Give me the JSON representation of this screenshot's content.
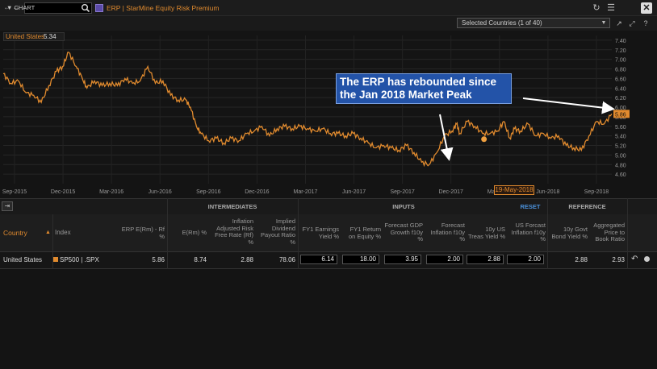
{
  "titlebar": {
    "nav_arrows": "←→",
    "app_title": "ERP | StarMine Equity Risk Premium",
    "icons": [
      "refresh-icon",
      "menu-icon",
      "close-icon"
    ]
  },
  "chart_header": {
    "toggle_label": "▼  CHART",
    "country_select_value": "Selected Countries (1 of 40)",
    "icons": [
      "export-icon",
      "expand-icon",
      "help-icon"
    ]
  },
  "chart": {
    "series_name": "United States",
    "series_value": "5.34",
    "last_value_label": "5.86",
    "hover_date": "19-May-2018",
    "callout_line1": "The ERP has rebounded since",
    "callout_line2": "the Jan 2018 Market Peak"
  },
  "chart_data": {
    "type": "line",
    "title": "",
    "xlabel": "",
    "ylabel": "",
    "ylim": [
      4.4,
      7.5
    ],
    "y_ticks": [
      "4.60",
      "4.80",
      "5.00",
      "5.20",
      "5.40",
      "5.60",
      "5.80",
      "6.00",
      "6.20",
      "6.40",
      "6.60",
      "6.80",
      "7.00",
      "7.20",
      "7.40"
    ],
    "x_ticks": [
      "Sep-2015",
      "Dec-2015",
      "Mar-2016",
      "Jun-2016",
      "Sep-2016",
      "Dec-2016",
      "Mar-2017",
      "Jun-2017",
      "Sep-2017",
      "Dec-2017",
      "Mar-2018",
      "Jun-2018",
      "Sep-2018"
    ],
    "series": [
      {
        "name": "United States",
        "x": [
          0,
          0.5,
          1,
          1.5,
          2,
          2.5,
          3,
          3.5,
          3.9,
          4.3,
          4.8,
          5.2,
          5.5,
          6,
          6.5,
          7,
          7.5,
          8,
          8.5,
          9,
          9.5,
          10,
          10.5,
          11,
          11.5,
          12,
          12.3,
          12.7,
          13,
          13.5,
          14,
          14.5,
          15,
          15.5,
          16,
          16.5,
          17,
          17.5,
          18,
          18.5,
          19,
          19.5,
          20,
          20.5,
          21,
          21.5,
          22,
          22.5,
          23,
          23.5,
          24,
          24.5,
          25,
          25.5,
          26,
          26.5,
          27,
          27.5,
          28,
          28.5,
          29,
          29.5,
          29.8,
          30,
          30.5,
          31,
          31.5,
          32,
          32.5,
          32.9,
          33.3,
          33.6,
          34,
          34.5,
          35,
          35.5,
          36,
          36.5,
          37,
          37.5,
          38,
          38.5,
          39,
          39.5,
          40
        ],
        "values": [
          6.7,
          6.5,
          6.55,
          6.3,
          6.25,
          6.1,
          6.45,
          6.75,
          6.85,
          7.15,
          6.85,
          6.6,
          6.4,
          6.55,
          6.45,
          6.5,
          6.45,
          6.6,
          6.5,
          6.55,
          6.85,
          6.5,
          6.55,
          6.25,
          6.15,
          6.15,
          6.0,
          5.6,
          5.45,
          5.3,
          5.35,
          5.25,
          5.35,
          5.3,
          5.45,
          5.5,
          5.6,
          5.4,
          5.55,
          5.6,
          5.55,
          5.6,
          5.55,
          5.5,
          5.55,
          5.45,
          5.45,
          5.4,
          5.45,
          5.35,
          5.25,
          5.15,
          5.2,
          5.15,
          5.1,
          5.2,
          5.05,
          4.85,
          4.8,
          5.05,
          5.4,
          5.5,
          5.65,
          5.45,
          5.7,
          5.6,
          5.45,
          5.45,
          5.5,
          5.7,
          5.35,
          5.55,
          5.5,
          5.65,
          5.4,
          5.45,
          5.35,
          5.4,
          5.2,
          5.15,
          5.1,
          5.4,
          5.7,
          5.65,
          5.86
        ]
      }
    ],
    "grid": true,
    "legend": "none"
  },
  "table": {
    "sections": {
      "intermediates": "INTERMEDIATES",
      "inputs": "INPUTS",
      "reset": "RESET",
      "reference": "REFERENCE"
    },
    "headers": {
      "country": "Country",
      "index": "Index",
      "erp": [
        "ERP E(Rm) - Rf",
        "%"
      ],
      "erm": [
        "E(Rm) %"
      ],
      "infl_adj": [
        "Inflation",
        "Adjusted Risk",
        "Free Rate (Rf)",
        "%"
      ],
      "implied_div": [
        "Implied",
        "Dividend",
        "Payout Ratio",
        "%"
      ],
      "fy1_eps": [
        "FY1 Earnings",
        "Yield %"
      ],
      "fy1_roe": [
        "FY1 Return",
        "on Equity %"
      ],
      "gdp": [
        "Forecast GDP",
        "Growth f10y",
        "%"
      ],
      "infl": [
        "Forecast",
        "Inflation f10y",
        "%"
      ],
      "treas": [
        "10y US",
        "Treas Yield %"
      ],
      "us_infl": [
        "US Forcast",
        "Inflation f10y",
        "%"
      ],
      "govt": [
        "10y Govt",
        "Bond Yield %"
      ],
      "ptb": [
        "Aggregated",
        "Price to",
        "Book Ratio"
      ]
    },
    "row": {
      "country": "United States",
      "index": "SP500 | .SPX",
      "erp": "5.86",
      "erm": "8.74",
      "infl_adj": "2.88",
      "implied_div": "78.06",
      "fy1_eps": "6.14",
      "fy1_roe": "18.00",
      "gdp": "3.95",
      "infl": "2.00",
      "treas": "2.88",
      "us_infl": "2.00",
      "govt": "2.88",
      "ptb": "2.93"
    }
  },
  "colors": {
    "accent": "#e08a2e",
    "callout": "#2353a8",
    "background": "#141414"
  }
}
